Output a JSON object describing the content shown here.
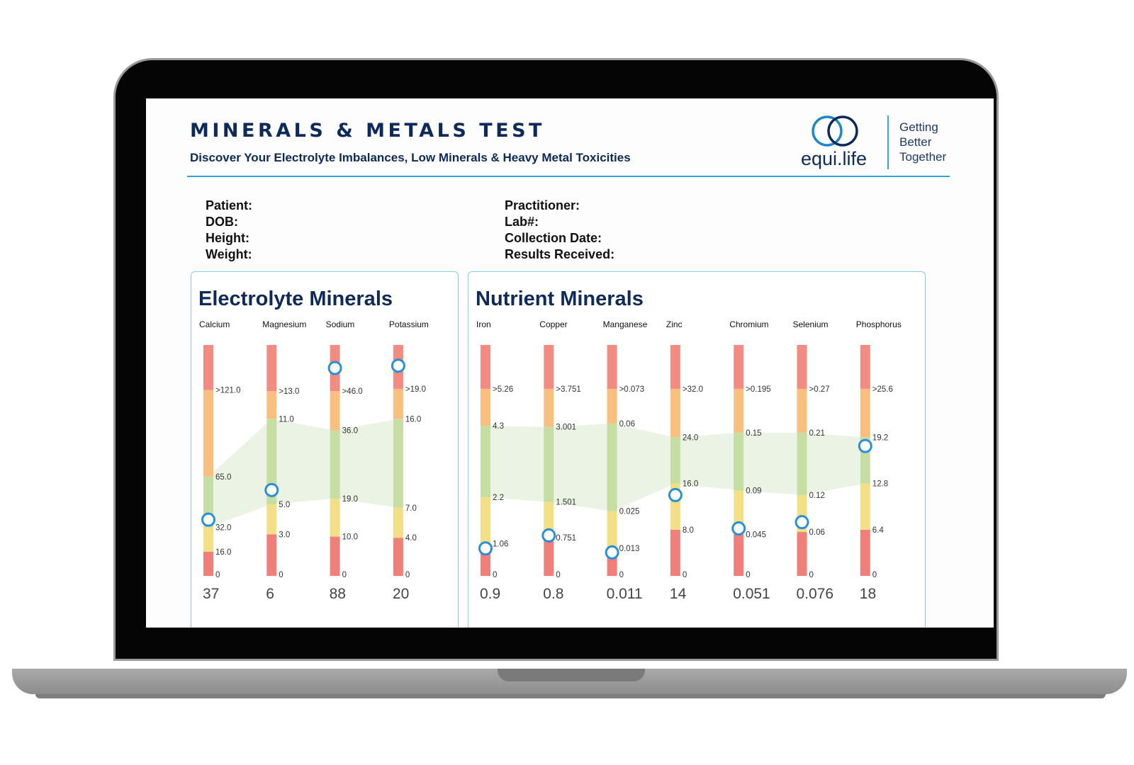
{
  "header": {
    "title": "MINERALS & METALS TEST",
    "subtitle": "Discover Your Electrolyte Imbalances, Low Minerals & Heavy Metal Toxicities",
    "logo_text": "equi.life",
    "tagline": [
      "Getting",
      "Better",
      "Together"
    ]
  },
  "patient_info": {
    "left": [
      "Patient:",
      "DOB:",
      "Height:",
      "Weight:"
    ],
    "right": [
      "Practitioner:",
      "Lab#:",
      "Collection Date:",
      "Results Received:"
    ]
  },
  "colors": {
    "high": "#f28b82",
    "elevated": "#f9bf7f",
    "optimal": "#c6dea4",
    "low": "#f3df86",
    "deficient": "#f07f7a",
    "marker": "#2a8fd6",
    "band": "#e8f2df"
  },
  "chart_data": [
    {
      "type": "range-bars",
      "title": "Electrolyte Minerals",
      "categories": [
        "Calcium",
        "Magnesium",
        "Sodium",
        "Potassium"
      ],
      "values": [
        37,
        6,
        88,
        20
      ],
      "value_labels": [
        "37",
        "6",
        "88",
        "20"
      ],
      "thresholds": [
        [
          "0",
          "16.0",
          "32.0",
          "65.0",
          ">121.0"
        ],
        [
          "0",
          "3.0",
          "5.0",
          "11.0",
          ">13.0"
        ],
        [
          "0",
          "10.0",
          "19.0",
          "36.0",
          ">46.0"
        ],
        [
          "0",
          "4.0",
          "7.0",
          "16.0",
          ">19.0"
        ]
      ],
      "zones": [
        "deficient",
        "low",
        "optimal",
        "elevated",
        "high"
      ]
    },
    {
      "type": "range-bars",
      "title": "Nutrient Minerals",
      "categories": [
        "Iron",
        "Copper",
        "Manganese",
        "Zinc",
        "Chromium",
        "Selenium",
        "Phosphorus"
      ],
      "values": [
        0.9,
        0.8,
        0.011,
        14,
        0.051,
        0.076,
        18
      ],
      "value_labels": [
        "0.9",
        "0.8",
        "0.011",
        "14",
        "0.051",
        "0.076",
        "18"
      ],
      "thresholds": [
        [
          "0",
          "1.06",
          "2.2",
          "4.3",
          ">5.26"
        ],
        [
          "0",
          "0.751",
          "1.501",
          "3.001",
          ">3.751"
        ],
        [
          "0",
          "0.013",
          "0.025",
          "0.06",
          ">0.073"
        ],
        [
          "0",
          "8.0",
          "16.0",
          "24.0",
          ">32.0"
        ],
        [
          "0",
          "0.045",
          "0.09",
          "0.15",
          ">0.195"
        ],
        [
          "0",
          "0.06",
          "0.12",
          "0.21",
          ">0.27"
        ],
        [
          "0",
          "6.4",
          "12.8",
          "19.2",
          ">25.6"
        ]
      ],
      "zones": [
        "deficient",
        "low",
        "optimal",
        "elevated",
        "high"
      ]
    }
  ]
}
